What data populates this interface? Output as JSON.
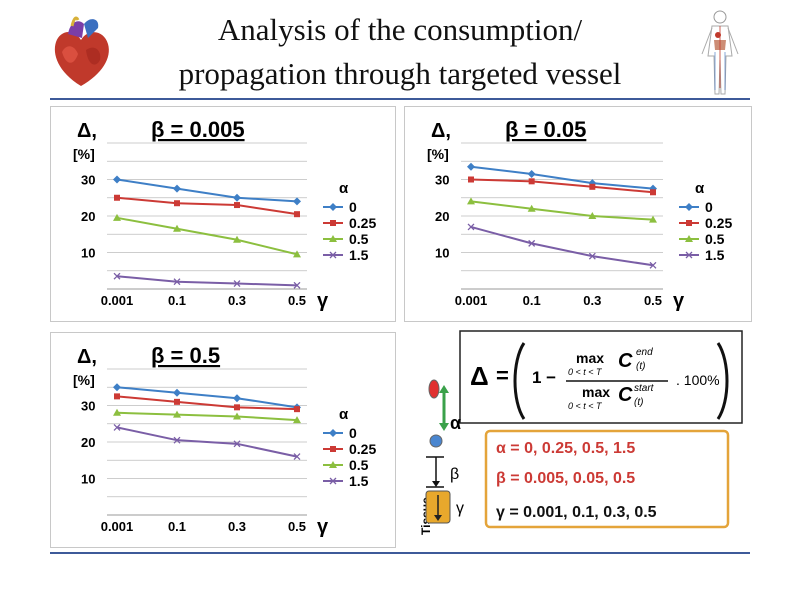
{
  "title": {
    "line1": "Analysis of the consumption/",
    "line2": "propagation through targeted vessel"
  },
  "icons": {
    "heart": "heart-icon",
    "body": "human-body-icon"
  },
  "colors": {
    "rule": "#3d5a99",
    "series": [
      "#3e7fc6",
      "#cc3a35",
      "#8cbf3f",
      "#7a5ea6"
    ]
  },
  "chart_data": [
    {
      "type": "line",
      "title": "β = 0.005",
      "ylabel_top": "Δ,",
      "ylabel_unit": "[%]",
      "x": [
        "0.001",
        "0.1",
        "0.3",
        "0.5"
      ],
      "xlabel": "γ",
      "yticks": [
        "10",
        "20",
        "30"
      ],
      "ylim": [
        0,
        40
      ],
      "legend_title": "α",
      "legend_placement": "right",
      "grid": true,
      "series": [
        {
          "name": "0",
          "values": [
            30.0,
            27.5,
            25.0,
            24.0
          ]
        },
        {
          "name": "0.25",
          "values": [
            25.0,
            23.5,
            23.0,
            20.5
          ]
        },
        {
          "name": "0.5",
          "values": [
            19.5,
            16.5,
            13.5,
            9.5
          ]
        },
        {
          "name": "1.5",
          "values": [
            3.5,
            2.0,
            1.5,
            1.0
          ]
        }
      ]
    },
    {
      "type": "line",
      "title": "β = 0.05",
      "ylabel_top": "Δ,",
      "ylabel_unit": "[%]",
      "x": [
        "0.001",
        "0.1",
        "0.3",
        "0.5"
      ],
      "xlabel": "γ",
      "yticks": [
        "10",
        "20",
        "30"
      ],
      "ylim": [
        0,
        40
      ],
      "legend_title": "α",
      "legend_placement": "right",
      "grid": true,
      "series": [
        {
          "name": "0",
          "values": [
            33.5,
            31.5,
            29.0,
            27.5
          ]
        },
        {
          "name": "0.25",
          "values": [
            30.0,
            29.5,
            28.0,
            26.5
          ]
        },
        {
          "name": "0.5",
          "values": [
            24.0,
            22.0,
            20.0,
            19.0
          ]
        },
        {
          "name": "1.5",
          "values": [
            17.0,
            12.5,
            9.0,
            6.5
          ]
        }
      ]
    },
    {
      "type": "line",
      "title": "β = 0.5",
      "ylabel_top": "Δ,",
      "ylabel_unit": "[%]",
      "x": [
        "0.001",
        "0.1",
        "0.3",
        "0.5"
      ],
      "xlabel": "γ",
      "yticks": [
        "10",
        "20",
        "30"
      ],
      "ylim": [
        0,
        40
      ],
      "legend_title": "α",
      "legend_placement": "right",
      "grid": true,
      "series": [
        {
          "name": "0",
          "values": [
            35.0,
            33.5,
            32.0,
            29.5
          ]
        },
        {
          "name": "0.25",
          "values": [
            32.5,
            31.0,
            29.5,
            29.0
          ]
        },
        {
          "name": "0.5",
          "values": [
            28.0,
            27.5,
            27.0,
            26.0
          ]
        },
        {
          "name": "1.5",
          "values": [
            24.0,
            20.5,
            19.5,
            16.0
          ]
        }
      ]
    }
  ],
  "formula": {
    "delta": "Δ",
    "equals": "=",
    "one_minus": "1 −",
    "max_top": "max",
    "cond_top": "0 < t < T",
    "c_end": "C",
    "c_end_sup": "end",
    "t_arg": "(t)",
    "max_bot": "max",
    "cond_bot": "0 < t < T",
    "c_start": "C",
    "c_start_sup": "start",
    "times_100": ". 100%"
  },
  "params": {
    "alpha": "α = 0, 0.25, 0.5, 1.5",
    "beta": "β = 0.005, 0.05, 0.5",
    "gamma": "γ = 0.001, 0.1, 0.3, 0.5"
  },
  "schematic": {
    "tissue_label": "Tissue",
    "alpha_sym": "α",
    "beta_sym": "β",
    "gamma_sym": "γ"
  }
}
